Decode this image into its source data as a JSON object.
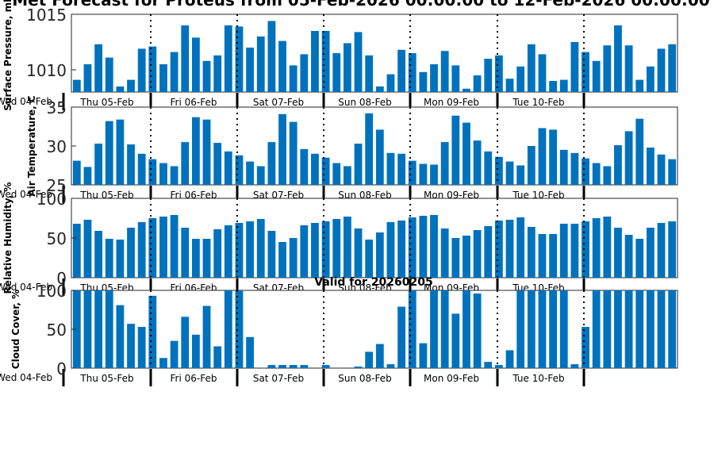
{
  "figure": {
    "title": "Met Forecast for Proteus from 05-Feb-2026 00:00:00 to 12-Feb-2026 00:00:00",
    "valid_text": "Valid for 20260205"
  },
  "colors": {
    "bar": "#0072bd",
    "axis": "#262626",
    "background": "#ffffff",
    "separator": "#000000"
  },
  "chart_data": [
    {
      "type": "bar",
      "title": "",
      "ylabel": "Surface Pressure, mb",
      "xlabel": "",
      "ylim": [
        1008,
        1015
      ],
      "yticks": [
        1010,
        1015
      ],
      "ytick_labels": [
        "1010",
        "1015"
      ],
      "start_label": "Wed 04-Feb",
      "day_labels": [
        "Thu 05-Feb",
        "Fri 06-Feb",
        "Sat 07-Feb",
        "Sun 08-Feb",
        "Mon 09-Feb",
        "Tue 10-Feb"
      ],
      "values": [
        1009.1,
        1010.5,
        1012.3,
        1011.1,
        1008.5,
        1009.1,
        1011.9,
        1012.1,
        1010.5,
        1011.6,
        1014.0,
        1012.9,
        1010.8,
        1011.3,
        1014.0,
        1013.9,
        1012.0,
        1013.0,
        1014.4,
        1012.6,
        1010.4,
        1011.4,
        1013.5,
        1013.5,
        1011.5,
        1012.4,
        1013.4,
        1011.3,
        1008.5,
        1009.6,
        1011.8,
        1011.5,
        1009.8,
        1010.5,
        1011.7,
        1010.4,
        1008.3,
        1009.5,
        1011.0,
        1011.3,
        1009.2,
        1010.3,
        1012.3,
        1011.4,
        1009.0,
        1009.1,
        1012.5,
        1011.6,
        1010.8,
        1012.2,
        1014.0,
        1012.2,
        1009.1,
        1010.3,
        1011.9,
        1012.3
      ]
    },
    {
      "type": "bar",
      "title": "",
      "ylabel": "Air Temperature, C",
      "xlabel": "",
      "ylim": [
        25,
        35
      ],
      "yticks": [
        25,
        30,
        35
      ],
      "ytick_labels": [
        "25",
        "30",
        "35"
      ],
      "start_label": "Wed 04-Feb",
      "day_labels": [
        "Thu 05-Feb",
        "Fri 06-Feb",
        "Sat 07-Feb",
        "Sun 08-Feb",
        "Mon 09-Feb",
        "Tue 10-Feb"
      ],
      "values": [
        28.1,
        27.3,
        30.3,
        33.2,
        33.4,
        30.2,
        29.0,
        28.3,
        27.8,
        27.4,
        30.5,
        33.7,
        33.4,
        30.4,
        29.3,
        28.8,
        28.0,
        27.4,
        30.5,
        34.1,
        33.1,
        29.6,
        29.0,
        28.5,
        27.8,
        27.4,
        30.3,
        34.2,
        32.1,
        29.1,
        29.0,
        28.1,
        27.7,
        27.6,
        30.5,
        33.9,
        33.0,
        30.7,
        29.3,
        28.6,
        28.0,
        27.5,
        30.0,
        32.3,
        32.1,
        29.5,
        29.1,
        28.4,
        27.8,
        27.4,
        30.1,
        31.9,
        33.5,
        29.8,
        28.9,
        28.3
      ]
    },
    {
      "type": "bar",
      "title": "",
      "ylabel": "Relative Humidity, %",
      "xlabel": "",
      "ylim": [
        0,
        100
      ],
      "yticks": [
        0,
        50,
        100
      ],
      "ytick_labels": [
        "0",
        "50",
        "100"
      ],
      "start_label": "Wed 04-Feb",
      "day_labels": [
        "Thu 05-Feb",
        "Fri 06-Feb",
        "Sat 07-Feb",
        "Sun 08-Feb",
        "Mon 09-Feb",
        "Tue 10-Feb"
      ],
      "values": [
        68,
        73,
        59,
        49,
        48,
        63,
        70,
        75,
        77,
        79,
        63,
        49,
        49,
        61,
        66,
        69,
        71,
        74,
        59,
        45,
        50,
        66,
        69,
        71,
        74,
        77,
        62,
        48,
        57,
        70,
        72,
        76,
        78,
        79,
        62,
        50,
        53,
        60,
        65,
        72,
        73,
        76,
        64,
        55,
        55,
        68,
        68,
        71,
        75,
        77,
        63,
        54,
        49,
        63,
        69,
        71
      ]
    },
    {
      "type": "bar",
      "title": "Valid for 20260205",
      "ylabel": "Cloud Cover, %",
      "xlabel": "",
      "ylim": [
        0,
        100
      ],
      "yticks": [
        0,
        50,
        100
      ],
      "ytick_labels": [
        "0",
        "50",
        "100"
      ],
      "start_label": "Wed 04-Feb",
      "day_labels": [
        "Thu 05-Feb",
        "Fri 06-Feb",
        "Sat 07-Feb",
        "Sun 08-Feb",
        "Mon 09-Feb",
        "Tue 10-Feb"
      ],
      "values": [
        100,
        100,
        100,
        100,
        81,
        57,
        53,
        93,
        13,
        35,
        66,
        43,
        80,
        28,
        100,
        100,
        40,
        0,
        4,
        4,
        4,
        4,
        0,
        4,
        0,
        0,
        2,
        21,
        31,
        5,
        79,
        100,
        32,
        100,
        100,
        70,
        100,
        96,
        8,
        4,
        23,
        100,
        100,
        100,
        100,
        100,
        5,
        53,
        100,
        100,
        100,
        100,
        100,
        100,
        100,
        100
      ]
    }
  ]
}
